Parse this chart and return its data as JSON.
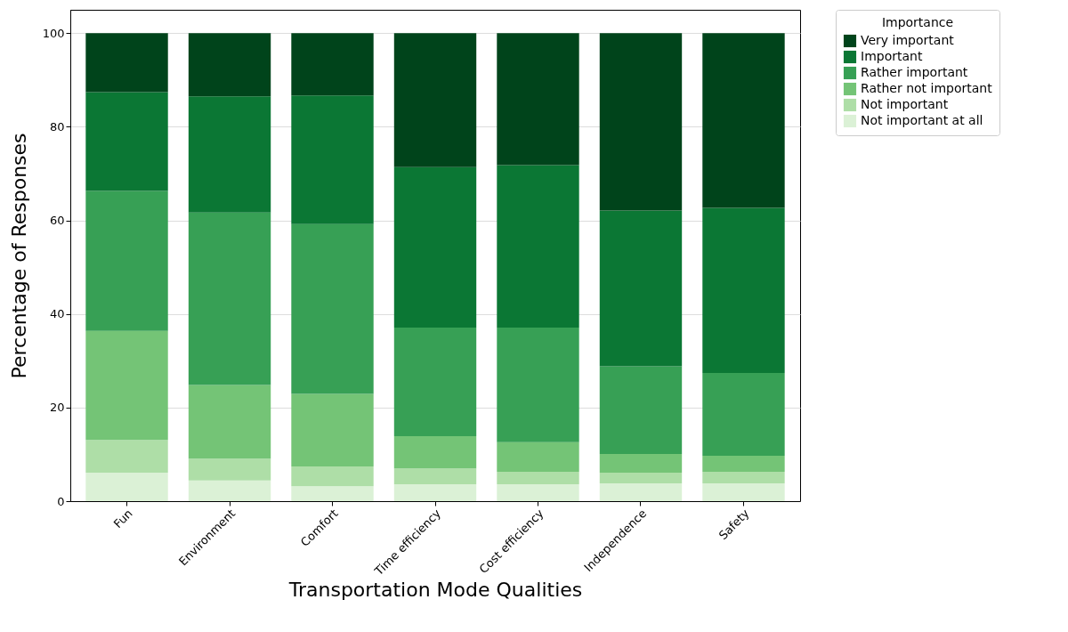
{
  "chart_data": {
    "type": "bar",
    "stacked": true,
    "xlabel": "Transportation Mode Qualities",
    "ylabel": "Percentage of Responses",
    "legend_title": "Importance",
    "categories": [
      "Fun",
      "Environment",
      "Comfort",
      "Time efficiency",
      "Cost efficiency",
      "Independence",
      "Safety"
    ],
    "series": [
      {
        "name": "Not important at all",
        "color": "#dbf1d6",
        "values": [
          6.1,
          4.4,
          3.2,
          3.6,
          3.6,
          3.8,
          3.8
        ]
      },
      {
        "name": "Not important",
        "color": "#aedea7",
        "values": [
          7.0,
          4.7,
          4.2,
          3.4,
          2.7,
          2.3,
          2.5
        ]
      },
      {
        "name": "Rather not important",
        "color": "#74c476",
        "values": [
          23.3,
          15.7,
          15.5,
          6.9,
          6.3,
          4.0,
          3.4
        ]
      },
      {
        "name": "Rather important",
        "color": "#37a055",
        "values": [
          29.9,
          36.9,
          36.3,
          23.2,
          24.5,
          18.7,
          17.7
        ]
      },
      {
        "name": "Important",
        "color": "#0b7734",
        "values": [
          21.1,
          24.8,
          27.5,
          34.3,
          34.7,
          33.3,
          35.3
        ]
      },
      {
        "name": "Very important",
        "color": "#00441b",
        "values": [
          12.6,
          13.5,
          13.3,
          28.6,
          28.2,
          37.9,
          37.3
        ]
      }
    ],
    "ylim": [
      0,
      105
    ],
    "yticks": [
      0,
      20,
      40,
      60,
      80,
      100
    ],
    "grid": "y",
    "legend": "top right"
  }
}
